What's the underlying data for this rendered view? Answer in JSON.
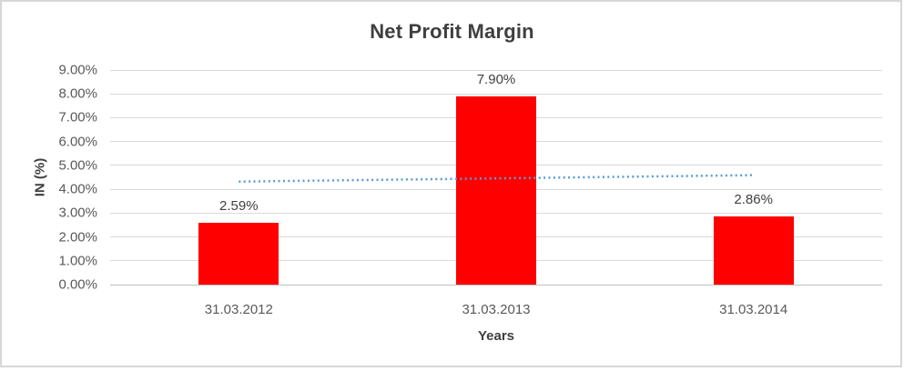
{
  "chart_data": {
    "type": "bar",
    "title": "Net Profit Margin",
    "xlabel": "Years",
    "ylabel": "IN (%)",
    "categories": [
      "31.03.2012",
      "31.03.2013",
      "31.03.2014"
    ],
    "values": [
      2.59,
      7.9,
      2.86
    ],
    "data_labels": [
      "2.59%",
      "7.90%",
      "2.86%"
    ],
    "y_tick_labels": [
      "9.00%",
      "8.00%",
      "7.00%",
      "6.00%",
      "5.00%",
      "4.00%",
      "3.00%",
      "2.00%",
      "1.00%",
      "0.00%"
    ],
    "ylim": [
      0,
      9
    ],
    "grid": true,
    "legend": "none",
    "bar_color": "#ff0000",
    "colors": {
      "gridline": "#d9d9d9",
      "axis_line": "#bfbfbf",
      "title_text": "#3f3f3f",
      "tick_text": "#595959",
      "label_text": "#404040",
      "frame_border": "#d7d7d7",
      "trendline": "#5b9bd5"
    },
    "trendline": {
      "type": "linear",
      "style": "dotted",
      "color": "#5b9bd5",
      "start_value": 4.32,
      "end_value": 4.59
    }
  }
}
